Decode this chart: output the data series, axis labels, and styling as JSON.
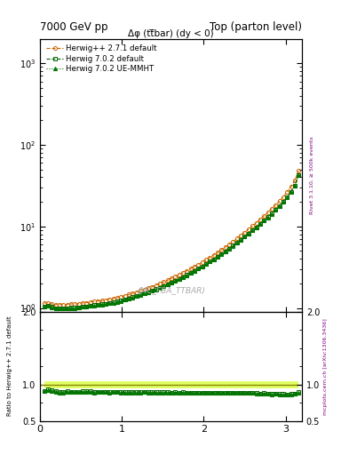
{
  "title_left": "7000 GeV pp",
  "title_right": "Top (parton level)",
  "ylabel_right_main": "Rivet 3.1.10, ≥ 500k events",
  "ylabel_right_ratio": "mcplots.cern.ch [arXiv:1306.3436]",
  "plot_title": "Δφ (tt̅bar) (dy < 0)",
  "watermark": "(MC_FBA_TTBAR)",
  "ylabel_ratio": "Ratio to Herwig++ 2.7.1 default",
  "series": [
    {
      "label": "Herwig++ 2.7.1 default",
      "color": "#cc6600",
      "marker": "o",
      "linestyle": "--",
      "x": [
        0.047,
        0.094,
        0.141,
        0.188,
        0.236,
        0.283,
        0.33,
        0.377,
        0.424,
        0.471,
        0.519,
        0.566,
        0.613,
        0.66,
        0.707,
        0.755,
        0.802,
        0.849,
        0.896,
        0.943,
        0.99,
        1.038,
        1.085,
        1.132,
        1.179,
        1.226,
        1.274,
        1.321,
        1.368,
        1.415,
        1.462,
        1.509,
        1.557,
        1.604,
        1.651,
        1.698,
        1.745,
        1.792,
        1.84,
        1.887,
        1.934,
        1.981,
        2.028,
        2.076,
        2.123,
        2.17,
        2.217,
        2.264,
        2.311,
        2.359,
        2.406,
        2.453,
        2.5,
        2.547,
        2.594,
        2.642,
        2.689,
        2.736,
        2.783,
        2.83,
        2.877,
        2.925,
        2.972,
        3.019,
        3.066,
        3.113,
        3.16
      ],
      "y": [
        1.15,
        1.15,
        1.12,
        1.1,
        1.1,
        1.1,
        1.1,
        1.12,
        1.12,
        1.13,
        1.15,
        1.16,
        1.18,
        1.2,
        1.22,
        1.23,
        1.25,
        1.28,
        1.3,
        1.33,
        1.37,
        1.42,
        1.46,
        1.51,
        1.56,
        1.62,
        1.68,
        1.75,
        1.82,
        1.9,
        1.99,
        2.08,
        2.18,
        2.3,
        2.42,
        2.55,
        2.69,
        2.85,
        3.02,
        3.22,
        3.42,
        3.64,
        3.88,
        4.16,
        4.46,
        4.79,
        5.16,
        5.56,
        6.02,
        6.52,
        7.08,
        7.7,
        8.42,
        9.21,
        10.1,
        11.1,
        12.2,
        13.4,
        14.8,
        16.4,
        18.2,
        20.4,
        23.0,
        26.2,
        30.4,
        36.3,
        48.0
      ]
    },
    {
      "label": "Herwig 7.0.2 default",
      "color": "#006600",
      "marker": "s",
      "linestyle": "--",
      "x": [
        0.047,
        0.094,
        0.141,
        0.188,
        0.236,
        0.283,
        0.33,
        0.377,
        0.424,
        0.471,
        0.519,
        0.566,
        0.613,
        0.66,
        0.707,
        0.755,
        0.802,
        0.849,
        0.896,
        0.943,
        0.99,
        1.038,
        1.085,
        1.132,
        1.179,
        1.226,
        1.274,
        1.321,
        1.368,
        1.415,
        1.462,
        1.509,
        1.557,
        1.604,
        1.651,
        1.698,
        1.745,
        1.792,
        1.84,
        1.887,
        1.934,
        1.981,
        2.028,
        2.076,
        2.123,
        2.17,
        2.217,
        2.264,
        2.311,
        2.359,
        2.406,
        2.453,
        2.5,
        2.547,
        2.594,
        2.642,
        2.689,
        2.736,
        2.783,
        2.83,
        2.877,
        2.925,
        2.972,
        3.019,
        3.066,
        3.113,
        3.16
      ],
      "y": [
        1.04,
        1.07,
        1.03,
        1.0,
        0.99,
        0.99,
        1.0,
        1.01,
        1.01,
        1.02,
        1.04,
        1.05,
        1.07,
        1.08,
        1.1,
        1.11,
        1.13,
        1.15,
        1.17,
        1.2,
        1.23,
        1.27,
        1.31,
        1.36,
        1.4,
        1.46,
        1.51,
        1.57,
        1.63,
        1.7,
        1.78,
        1.86,
        1.95,
        2.05,
        2.16,
        2.27,
        2.4,
        2.54,
        2.69,
        2.86,
        3.04,
        3.24,
        3.45,
        3.7,
        3.97,
        4.26,
        4.59,
        4.95,
        5.35,
        5.8,
        6.3,
        6.85,
        7.47,
        8.17,
        8.94,
        9.8,
        10.7,
        11.8,
        13.0,
        14.3,
        15.9,
        17.7,
        20.0,
        22.7,
        26.5,
        31.8,
        43.0
      ]
    },
    {
      "label": "Herwig 7.0.2 UE-MMHT",
      "color": "#007700",
      "marker": "^",
      "linestyle": ":",
      "x": [
        0.047,
        0.094,
        0.141,
        0.188,
        0.236,
        0.283,
        0.33,
        0.377,
        0.424,
        0.471,
        0.519,
        0.566,
        0.613,
        0.66,
        0.707,
        0.755,
        0.802,
        0.849,
        0.896,
        0.943,
        0.99,
        1.038,
        1.085,
        1.132,
        1.179,
        1.226,
        1.274,
        1.321,
        1.368,
        1.415,
        1.462,
        1.509,
        1.557,
        1.604,
        1.651,
        1.698,
        1.745,
        1.792,
        1.84,
        1.887,
        1.934,
        1.981,
        2.028,
        2.076,
        2.123,
        2.17,
        2.217,
        2.264,
        2.311,
        2.359,
        2.406,
        2.453,
        2.5,
        2.547,
        2.594,
        2.642,
        2.689,
        2.736,
        2.783,
        2.83,
        2.877,
        2.925,
        2.972,
        3.019,
        3.066,
        3.113,
        3.16
      ],
      "y": [
        1.04,
        1.06,
        1.02,
        0.99,
        0.98,
        0.98,
        0.99,
        1.0,
        1.0,
        1.01,
        1.03,
        1.04,
        1.06,
        1.07,
        1.09,
        1.1,
        1.12,
        1.14,
        1.16,
        1.19,
        1.22,
        1.26,
        1.3,
        1.34,
        1.39,
        1.44,
        1.5,
        1.56,
        1.62,
        1.69,
        1.77,
        1.85,
        1.94,
        2.04,
        2.15,
        2.26,
        2.39,
        2.53,
        2.68,
        2.85,
        3.03,
        3.23,
        3.44,
        3.69,
        3.96,
        4.25,
        4.57,
        4.94,
        5.33,
        5.79,
        6.29,
        6.83,
        7.45,
        8.14,
        8.91,
        9.76,
        10.7,
        11.7,
        12.9,
        14.2,
        15.8,
        17.6,
        19.9,
        22.5,
        26.3,
        31.5,
        42.5
      ]
    }
  ],
  "ratio_band_color": "#ccff00",
  "ratio_band_alpha": 0.6,
  "xlim": [
    0,
    3.2
  ],
  "ylim_main": [
    0.9,
    2000
  ],
  "ylim_ratio": [
    0.5,
    2.0
  ],
  "ratio_yticks": [
    0.5,
    1.0,
    2.0
  ],
  "xticks": [
    0,
    1,
    2,
    3
  ]
}
